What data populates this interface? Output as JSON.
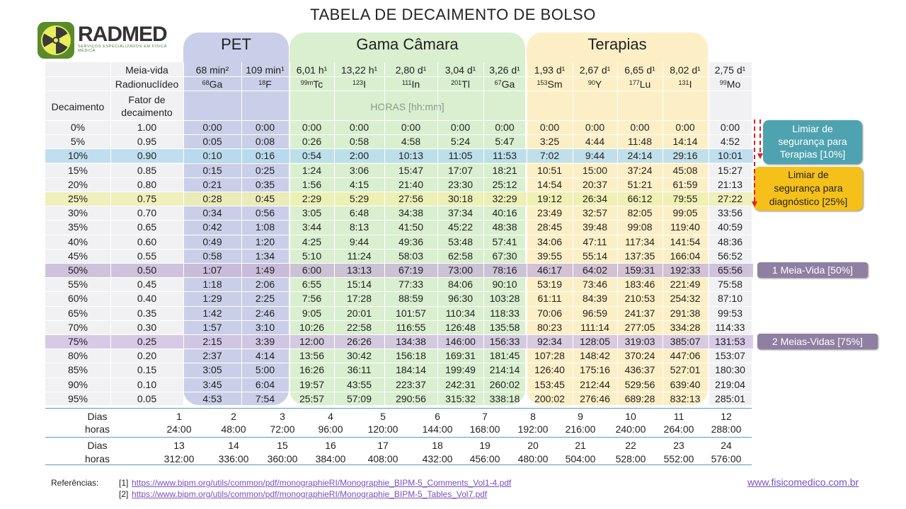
{
  "title": "TABELA DE DECAIMENTO DE BOLSO",
  "logo": {
    "text": "RADMED",
    "subtitle": "SERVIÇOS ESPECIALIZADOS EM FÍSICA MÉDICA"
  },
  "groups": {
    "pet": "PET",
    "gama": "Gama Câmara",
    "terapias": "Terapias"
  },
  "header": {
    "meia_vida_label": "Meia-vida",
    "radionuclideo_label": "Radionuclídeo",
    "decaimento_label": "Decaimento",
    "fator_label": "Fator de decaimento",
    "horas_label": "HORAS [hh:mm]"
  },
  "columns": [
    {
      "half_life": "68 min²",
      "mass": "68",
      "symbol": "Ga"
    },
    {
      "half_life": "109 min¹",
      "mass": "18",
      "symbol": "F"
    },
    {
      "half_life": "6,01 h¹",
      "mass": "99m",
      "symbol": "Tc"
    },
    {
      "half_life": "13,22  h¹",
      "mass": "123",
      "symbol": "I"
    },
    {
      "half_life": "2,80 d¹",
      "mass": "111",
      "symbol": "In"
    },
    {
      "half_life": "3,04 d¹",
      "mass": "201",
      "symbol": "Tl"
    },
    {
      "half_life": "3,26 d¹",
      "mass": "67",
      "symbol": "Ga"
    },
    {
      "half_life": "1,93 d¹",
      "mass": "153",
      "symbol": "Sm"
    },
    {
      "half_life": "2,67 d¹",
      "mass": "90",
      "symbol": "Y"
    },
    {
      "half_life": "6,65 d¹",
      "mass": "177",
      "symbol": "Lu"
    },
    {
      "half_life": "8,02 d¹",
      "mass": "131",
      "symbol": "I"
    },
    {
      "half_life": "2,75 d¹",
      "mass": "99",
      "symbol": "Mo"
    }
  ],
  "rows": [
    {
      "decay": "0%",
      "factor": "1.00",
      "values": [
        "0:00",
        "0:00",
        "0:00",
        "0:00",
        "0:00",
        "0:00",
        "0:00",
        "0:00",
        "0:00",
        "0:00",
        "0:00",
        "0:00"
      ]
    },
    {
      "decay": "5%",
      "factor": "0.95",
      "values": [
        "0:05",
        "0:08",
        "0:26",
        "0:58",
        "4:58",
        "5:24",
        "5:47",
        "3:25",
        "4:44",
        "11:48",
        "14:14",
        "4:52"
      ]
    },
    {
      "decay": "10%",
      "factor": "0.90",
      "values": [
        "0:10",
        "0:16",
        "0:54",
        "2:00",
        "10:13",
        "11:05",
        "11:53",
        "7:02",
        "9:44",
        "24:14",
        "29:16",
        "10:01"
      ]
    },
    {
      "decay": "15%",
      "factor": "0.85",
      "values": [
        "0:15",
        "0:25",
        "1:24",
        "3:06",
        "15:47",
        "17:07",
        "18:21",
        "10:51",
        "15:00",
        "37:24",
        "45:08",
        "15:27"
      ]
    },
    {
      "decay": "20%",
      "factor": "0.80",
      "values": [
        "0:21",
        "0:35",
        "1:56",
        "4:15",
        "21:40",
        "23:30",
        "25:12",
        "14:54",
        "20:37",
        "51:21",
        "61:59",
        "21:13"
      ]
    },
    {
      "decay": "25%",
      "factor": "0.75",
      "values": [
        "0:28",
        "0:45",
        "2:29",
        "5:29",
        "27:56",
        "30:18",
        "32:29",
        "19:12",
        "26:34",
        "66:12",
        "79:55",
        "27:22"
      ]
    },
    {
      "decay": "30%",
      "factor": "0.70",
      "values": [
        "0:34",
        "0:56",
        "3:05",
        "6:48",
        "34:38",
        "37:34",
        "40:16",
        "23:49",
        "32:57",
        "82:05",
        "99:05",
        "33:56"
      ]
    },
    {
      "decay": "35%",
      "factor": "0.65",
      "values": [
        "0:42",
        "1:08",
        "3:44",
        "8:13",
        "41:50",
        "45:22",
        "48:38",
        "28:45",
        "39:48",
        "99:08",
        "119:40",
        "40:59"
      ]
    },
    {
      "decay": "40%",
      "factor": "0.60",
      "values": [
        "0:49",
        "1:20",
        "4:25",
        "9:44",
        "49:36",
        "53:48",
        "57:41",
        "34:06",
        "47:11",
        "117:34",
        "141:54",
        "48:36"
      ]
    },
    {
      "decay": "45%",
      "factor": "0.55",
      "values": [
        "0:58",
        "1:34",
        "5:10",
        "11:24",
        "58:03",
        "62:58",
        "67:30",
        "39:55",
        "55:14",
        "137:35",
        "166:04",
        "56:52"
      ]
    },
    {
      "decay": "50%",
      "factor": "0.50",
      "values": [
        "1:07",
        "1:49",
        "6:00",
        "13:13",
        "67:19",
        "73:00",
        "78:16",
        "46:17",
        "64:02",
        "159:31",
        "192:33",
        "65:56"
      ]
    },
    {
      "decay": "55%",
      "factor": "0.45",
      "values": [
        "1:18",
        "2:06",
        "6:55",
        "15:14",
        "77:33",
        "84:06",
        "90:10",
        "53:19",
        "73:46",
        "183:46",
        "221:49",
        "75:58"
      ]
    },
    {
      "decay": "60%",
      "factor": "0.40",
      "values": [
        "1:29",
        "2:25",
        "7:56",
        "17:28",
        "88:59",
        "96:30",
        "103:28",
        "61:11",
        "84:39",
        "210:53",
        "254:32",
        "87:10"
      ]
    },
    {
      "decay": "65%",
      "factor": "0.35",
      "values": [
        "1:42",
        "2:46",
        "9:05",
        "20:01",
        "101:57",
        "110:34",
        "118:33",
        "70:06",
        "96:59",
        "241:37",
        "291:38",
        "99:53"
      ]
    },
    {
      "decay": "70%",
      "factor": "0.30",
      "values": [
        "1:57",
        "3:10",
        "10:26",
        "22:58",
        "116:55",
        "126:48",
        "135:58",
        "80:23",
        "111:14",
        "277:05",
        "334:28",
        "114:33"
      ]
    },
    {
      "decay": "75%",
      "factor": "0.25",
      "values": [
        "2:15",
        "3:39",
        "12:00",
        "26:26",
        "134:38",
        "146:00",
        "156:33",
        "92:34",
        "128:05",
        "319:03",
        "385:07",
        "131:53"
      ]
    },
    {
      "decay": "80%",
      "factor": "0.20",
      "values": [
        "2:37",
        "4:14",
        "13:56",
        "30:42",
        "156:18",
        "169:31",
        "181:45",
        "107:28",
        "148:42",
        "370:24",
        "447:06",
        "153:07"
      ]
    },
    {
      "decay": "85%",
      "factor": "0.15",
      "values": [
        "3:05",
        "5:00",
        "16:26",
        "36:11",
        "184:14",
        "199:49",
        "214:14",
        "126:40",
        "175:16",
        "436:37",
        "527:01",
        "180:30"
      ]
    },
    {
      "decay": "90%",
      "factor": "0.10",
      "values": [
        "3:45",
        "6:04",
        "19:57",
        "43:55",
        "223:37",
        "242:31",
        "260:02",
        "153:45",
        "212:44",
        "529:56",
        "639:40",
        "219:04"
      ]
    },
    {
      "decay": "95%",
      "factor": "0.05",
      "values": [
        "4:53",
        "7:54",
        "25:57",
        "57:09",
        "290:56",
        "315:32",
        "338:18",
        "200:02",
        "276:46",
        "689:28",
        "832:13",
        "285:01"
      ]
    }
  ],
  "highlights": {
    "ten_color": "#b6dcef",
    "twentyfive_color": "#eef0b0",
    "half_color": "#c7b6d6",
    "three_quarter_color": "#d2c3e3"
  },
  "callouts": {
    "terapias": "Limiar de segurança para Terapias [10%]",
    "diagnostico": "Limiar de segurança para diagnóstico [25%]",
    "meia_vida": "1 Meia-Vida [50%]",
    "duas_meias": "2 Meias-Vidas [75%]"
  },
  "days_table": {
    "dias_label": "Dias",
    "horas_label": "horas",
    "block1": {
      "days": [
        "1",
        "2",
        "3",
        "4",
        "5",
        "6",
        "7",
        "8",
        "9",
        "10",
        "11",
        "12"
      ],
      "hours": [
        "24:00",
        "48:00",
        "72:00",
        "96:00",
        "120:00",
        "144:00",
        "168:00",
        "192:00",
        "216:00",
        "240:00",
        "264:00",
        "288:00"
      ]
    },
    "block2": {
      "days": [
        "13",
        "14",
        "15",
        "16",
        "17",
        "18",
        "19",
        "20",
        "21",
        "22",
        "23",
        "24"
      ],
      "hours": [
        "312:00",
        "336:00",
        "360:00",
        "384:00",
        "408:00",
        "432:00",
        "456:00",
        "480:00",
        "504:00",
        "528:00",
        "552:00",
        "576:00"
      ]
    }
  },
  "references": {
    "label": "Referências:",
    "items": [
      {
        "num": "[1]",
        "url": "https://www.bipm.org/utils/common/pdf/monographieRI/Monographie_BIPM-5_Comments_Vol1-4.pdf"
      },
      {
        "num": "[2]",
        "url": "https://www.bipm.org/utils/common/pdf/monographieRI/Monographie_BIPM-5_Tables_Vol7.pdf"
      }
    ]
  },
  "website": "www.fisicomedico.com.br"
}
